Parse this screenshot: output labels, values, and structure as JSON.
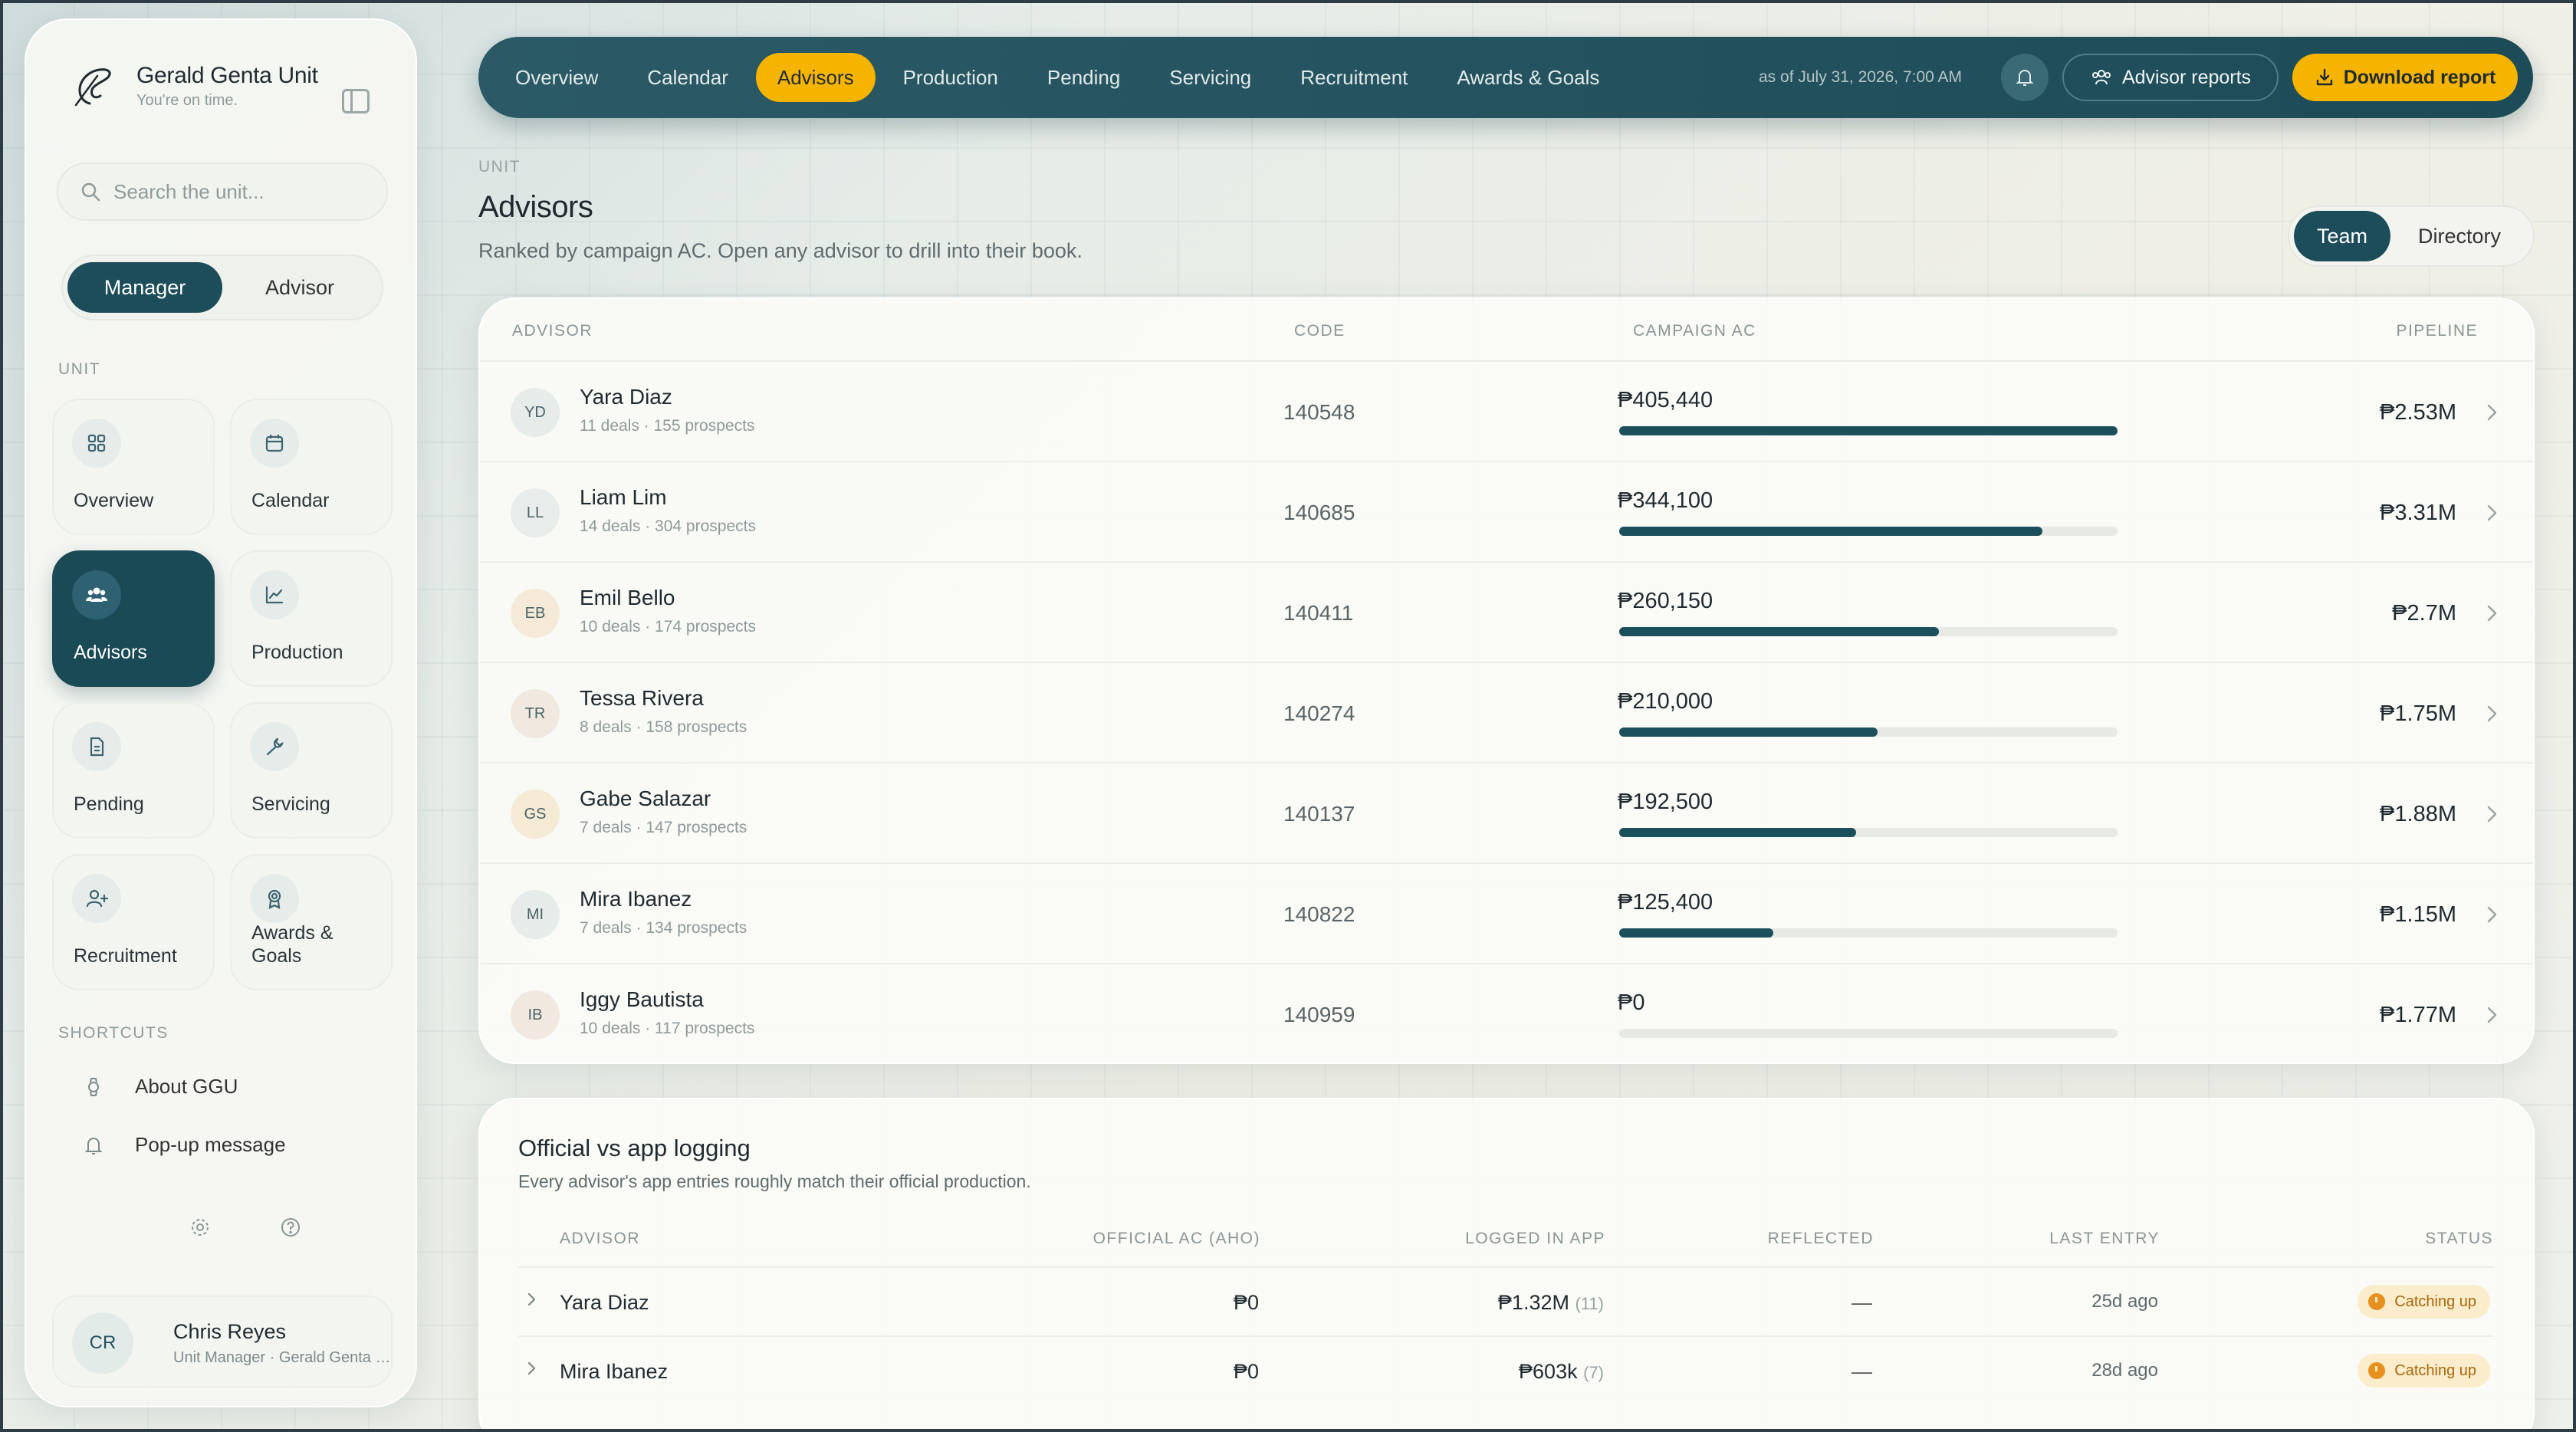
{
  "brand": {
    "title": "Gerald Genta Unit",
    "subtitle": "You're on time."
  },
  "search": {
    "placeholder": "Search the unit..."
  },
  "role_toggle": {
    "manager": "Manager",
    "advisor": "Advisor"
  },
  "sidebar": {
    "unit_label": "UNIT",
    "tiles": [
      {
        "label": "Overview",
        "icon": "grid-icon"
      },
      {
        "label": "Calendar",
        "icon": "calendar-icon"
      },
      {
        "label": "Advisors",
        "icon": "users-icon",
        "active": true
      },
      {
        "label": "Production",
        "icon": "chart-icon"
      },
      {
        "label": "Pending",
        "icon": "document-icon"
      },
      {
        "label": "Servicing",
        "icon": "wrench-icon"
      },
      {
        "label": "Recruitment",
        "icon": "user-plus-icon"
      },
      {
        "label": "Awards & Goals",
        "icon": "award-icon"
      }
    ],
    "shortcuts_label": "SHORTCUTS",
    "shortcuts": [
      {
        "label": "About GGU",
        "icon": "watch-icon"
      },
      {
        "label": "Pop-up message",
        "icon": "bell-icon"
      }
    ]
  },
  "user": {
    "initials": "CR",
    "name": "Chris Reyes",
    "role": "Unit Manager · Gerald Genta Unit"
  },
  "topbar": {
    "tabs": [
      "Overview",
      "Calendar",
      "Advisors",
      "Production",
      "Pending",
      "Servicing",
      "Recruitment",
      "Awards & Goals"
    ],
    "active_tab": "Advisors",
    "as_of": "as of July 31, 2026, 7:00 AM",
    "advisor_reports": "Advisor reports",
    "download_report": "Download report"
  },
  "header": {
    "eyebrow": "UNIT",
    "title": "Advisors",
    "subtitle": "Ranked by campaign AC. Open any advisor to drill into their book."
  },
  "view_toggle": {
    "team": "Team",
    "directory": "Directory"
  },
  "advisors_table": {
    "columns": {
      "advisor": "ADVISOR",
      "code": "CODE",
      "campaign_ac": "CAMPAIGN AC",
      "pipeline": "PIPELINE"
    },
    "rows": [
      {
        "initials": "YD",
        "name": "Yara Diaz",
        "meta": "11 deals · 155 prospects",
        "code": "140548",
        "ac": "₱405,440",
        "ac_fraction": 1.0,
        "pipeline": "₱2.53M",
        "avatar_color": "#e6ecea"
      },
      {
        "initials": "LL",
        "name": "Liam Lim",
        "meta": "14 deals · 304 prospects",
        "code": "140685",
        "ac": "₱344,100",
        "ac_fraction": 0.849,
        "pipeline": "₱3.31M",
        "avatar_color": "#e8ecea"
      },
      {
        "initials": "EB",
        "name": "Emil Bello",
        "meta": "10 deals · 174 prospects",
        "code": "140411",
        "ac": "₱260,150",
        "ac_fraction": 0.642,
        "pipeline": "₱2.7M",
        "avatar_color": "#f4ead7"
      },
      {
        "initials": "TR",
        "name": "Tessa Rivera",
        "meta": "8 deals · 158 prospects",
        "code": "140274",
        "ac": "₱210,000",
        "ac_fraction": 0.518,
        "pipeline": "₱1.75M",
        "avatar_color": "#f1e8df"
      },
      {
        "initials": "GS",
        "name": "Gabe Salazar",
        "meta": "7 deals · 147 prospects",
        "code": "140137",
        "ac": "₱192,500",
        "ac_fraction": 0.475,
        "pipeline": "₱1.88M",
        "avatar_color": "#f5ead3"
      },
      {
        "initials": "MI",
        "name": "Mira Ibanez",
        "meta": "7 deals · 134 prospects",
        "code": "140822",
        "ac": "₱125,400",
        "ac_fraction": 0.309,
        "pipeline": "₱1.15M",
        "avatar_color": "#e6ecea"
      },
      {
        "initials": "IB",
        "name": "Iggy Bautista",
        "meta": "10 deals · 117 prospects",
        "code": "140959",
        "ac": "₱0",
        "ac_fraction": 0.0,
        "pipeline": "₱1.77M",
        "avatar_color": "#f1e8df"
      }
    ]
  },
  "logging": {
    "title": "Official vs app logging",
    "subtitle": "Every advisor's app entries roughly match their official production.",
    "columns": {
      "advisor": "ADVISOR",
      "official": "OFFICIAL AC (AHO)",
      "logged": "LOGGED IN APP",
      "reflected": "REFLECTED",
      "last_entry": "LAST ENTRY",
      "status": "STATUS"
    },
    "rows": [
      {
        "name": "Yara Diaz",
        "official": "₱0",
        "logged": "₱1.32M",
        "logged_count": "(11)",
        "reflected": "—",
        "last_entry": "25d ago",
        "status": "Catching up"
      },
      {
        "name": "Mira Ibanez",
        "official": "₱0",
        "logged": "₱603k",
        "logged_count": "(7)",
        "reflected": "—",
        "last_entry": "28d ago",
        "status": "Catching up"
      }
    ]
  },
  "colors": {
    "accent": "#f5b400",
    "primary": "#1d4d5a",
    "status_warning": "#e8901e"
  }
}
